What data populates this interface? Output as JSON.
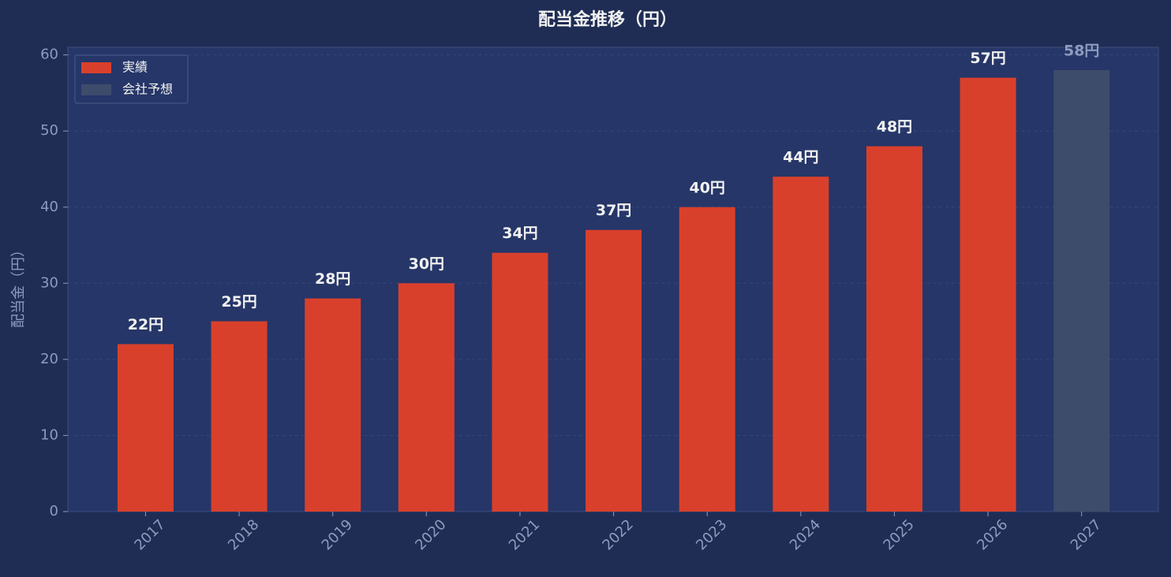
{
  "chart_data": {
    "type": "bar",
    "title": "配当金推移（円）",
    "y_label": "配当金（円）",
    "categories": [
      "2017",
      "2018",
      "2019",
      "2020",
      "2021",
      "2022",
      "2023",
      "2024",
      "2025",
      "2026",
      "2027"
    ],
    "series": [
      {
        "name": "実績",
        "color": "#d9402b",
        "label_color": "#f2f2f2",
        "values": [
          22,
          25,
          28,
          30,
          34,
          37,
          40,
          44,
          48,
          57,
          null
        ],
        "value_labels": [
          "22円",
          "25円",
          "28円",
          "30円",
          "34円",
          "37円",
          "40円",
          "44円",
          "48円",
          "57円",
          null
        ]
      },
      {
        "name": "会社予想",
        "color": "#3e4c6b",
        "label_color": "#8d9bbd",
        "values": [
          null,
          null,
          null,
          null,
          null,
          null,
          null,
          null,
          null,
          null,
          58
        ],
        "value_labels": [
          null,
          null,
          null,
          null,
          null,
          null,
          null,
          null,
          null,
          null,
          "58円"
        ]
      }
    ],
    "ylim": [
      0,
      61
    ],
    "yticks": [
      0,
      10,
      20,
      30,
      40,
      50,
      60
    ],
    "grid": true,
    "legend": "upper left"
  }
}
